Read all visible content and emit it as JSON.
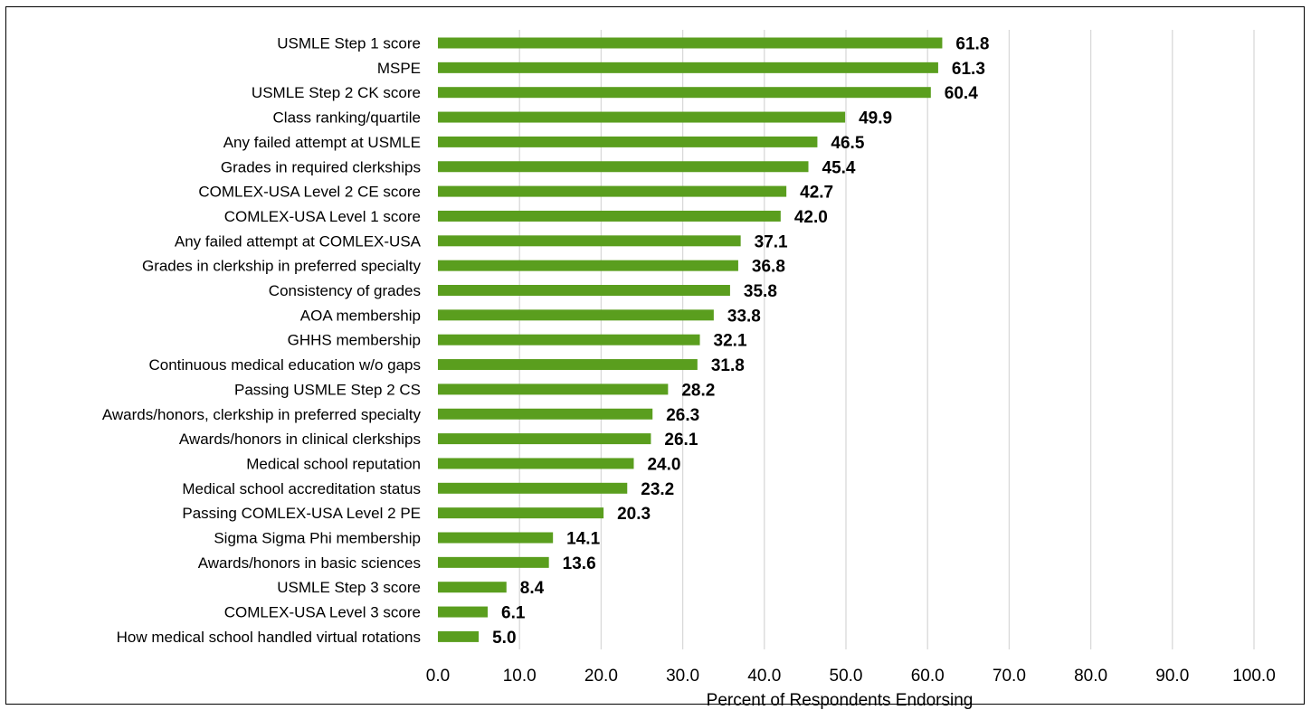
{
  "chart_data": {
    "type": "bar",
    "orientation": "horizontal",
    "categories": [
      "USMLE Step 1 score",
      "MSPE",
      "USMLE Step 2 CK score",
      "Class ranking/quartile",
      "Any failed attempt at USMLE",
      "Grades in required clerkships",
      "COMLEX-USA Level 2 CE score",
      "COMLEX-USA Level 1 score",
      "Any failed attempt at COMLEX-USA",
      "Grades in clerkship in preferred specialty",
      "Consistency of grades",
      "AOA membership",
      "GHHS membership",
      "Continuous medical education w/o gaps",
      "Passing USMLE Step 2 CS",
      "Awards/honors, clerkship in preferred specialty",
      "Awards/honors in clinical clerkships",
      "Medical school reputation",
      "Medical school accreditation status",
      "Passing COMLEX-USA Level 2 PE",
      "Sigma Sigma Phi membership",
      "Awards/honors in basic sciences",
      "USMLE Step 3 score",
      "COMLEX-USA Level 3 score",
      "How medical school handled virtual rotations"
    ],
    "values": [
      61.8,
      61.3,
      60.4,
      49.9,
      46.5,
      45.4,
      42.7,
      42.0,
      37.1,
      36.8,
      35.8,
      33.8,
      32.1,
      31.8,
      28.2,
      26.3,
      26.1,
      24.0,
      23.2,
      20.3,
      14.1,
      13.6,
      8.4,
      6.1,
      5.0
    ],
    "value_labels": [
      "61.8",
      "61.3",
      "60.4",
      "49.9",
      "46.5",
      "45.4",
      "42.7",
      "42.0",
      "37.1",
      "36.8",
      "35.8",
      "33.8",
      "32.1",
      "31.8",
      "28.2",
      "26.3",
      "26.1",
      "24.0",
      "23.2",
      "20.3",
      "14.1",
      "13.6",
      "8.4",
      "6.1",
      "5.0"
    ],
    "x_ticks": [
      "0.0",
      "10.0",
      "20.0",
      "30.0",
      "40.0",
      "50.0",
      "60.0",
      "70.0",
      "80.0",
      "90.0",
      "100.0"
    ],
    "xlim": [
      0,
      100
    ],
    "xlabel": "Percent of Respondents Endorsing",
    "ylabel": "",
    "title": "",
    "grid": "vertical",
    "legend": "none",
    "bar_color": "#5a9e1e",
    "grid_color": "#d9d9d9"
  }
}
